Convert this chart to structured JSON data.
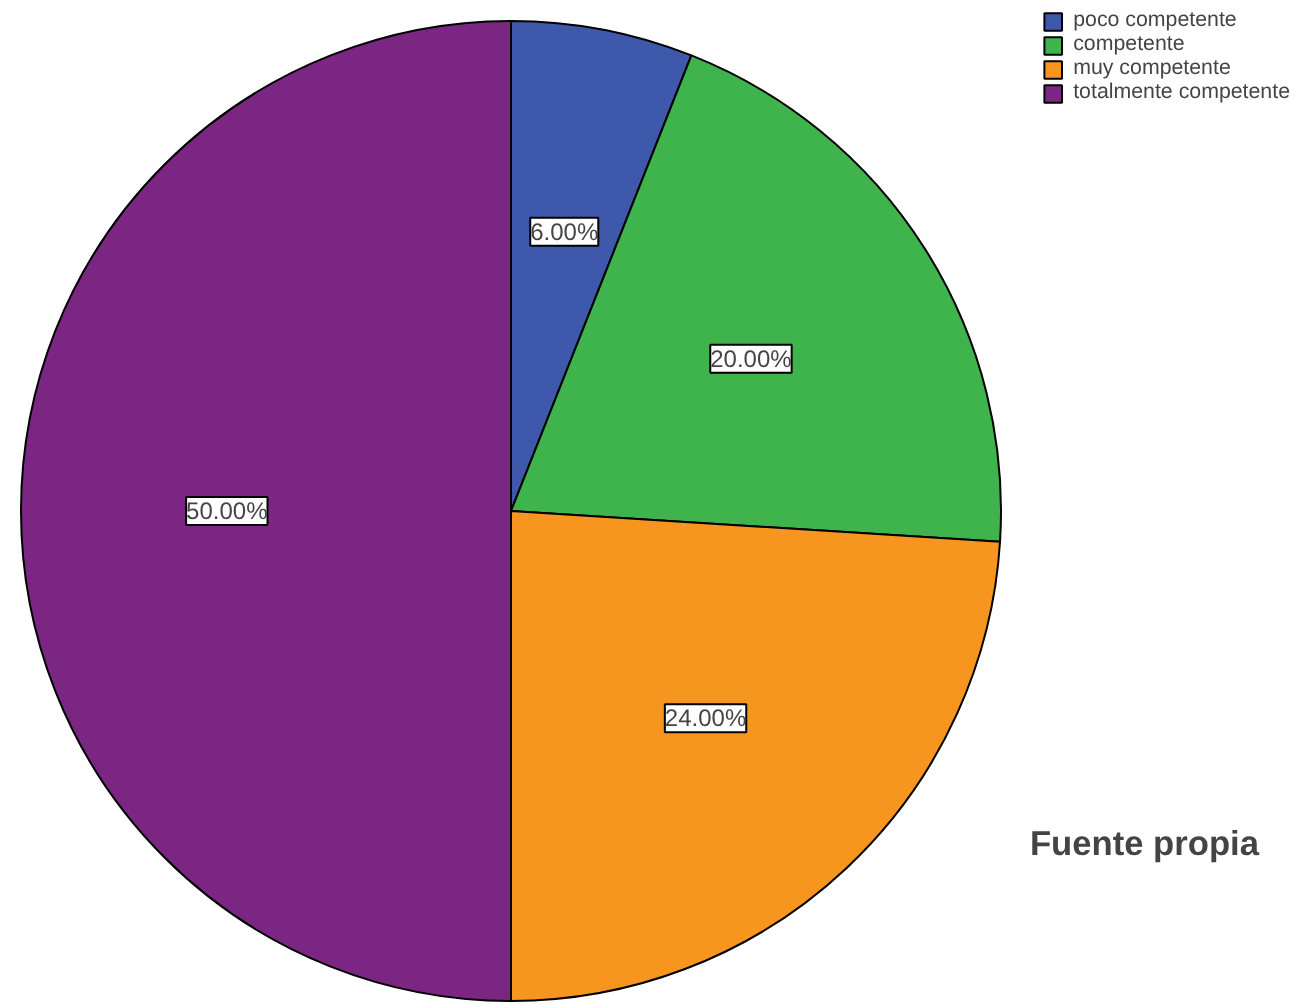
{
  "chart_data": {
    "type": "pie",
    "categories": [
      "poco competente",
      "competente",
      "muy competente",
      "totalmente competente"
    ],
    "values": [
      6,
      20,
      24,
      50
    ],
    "colors": [
      "#3e58ac",
      "#3fb34c",
      "#f7961e",
      "#7b2682"
    ],
    "value_labels": [
      "6.00%",
      "20.00%",
      "24.00%",
      "50.00%"
    ],
    "legend": "top right",
    "annotations": [
      "Fuente propia"
    ]
  }
}
